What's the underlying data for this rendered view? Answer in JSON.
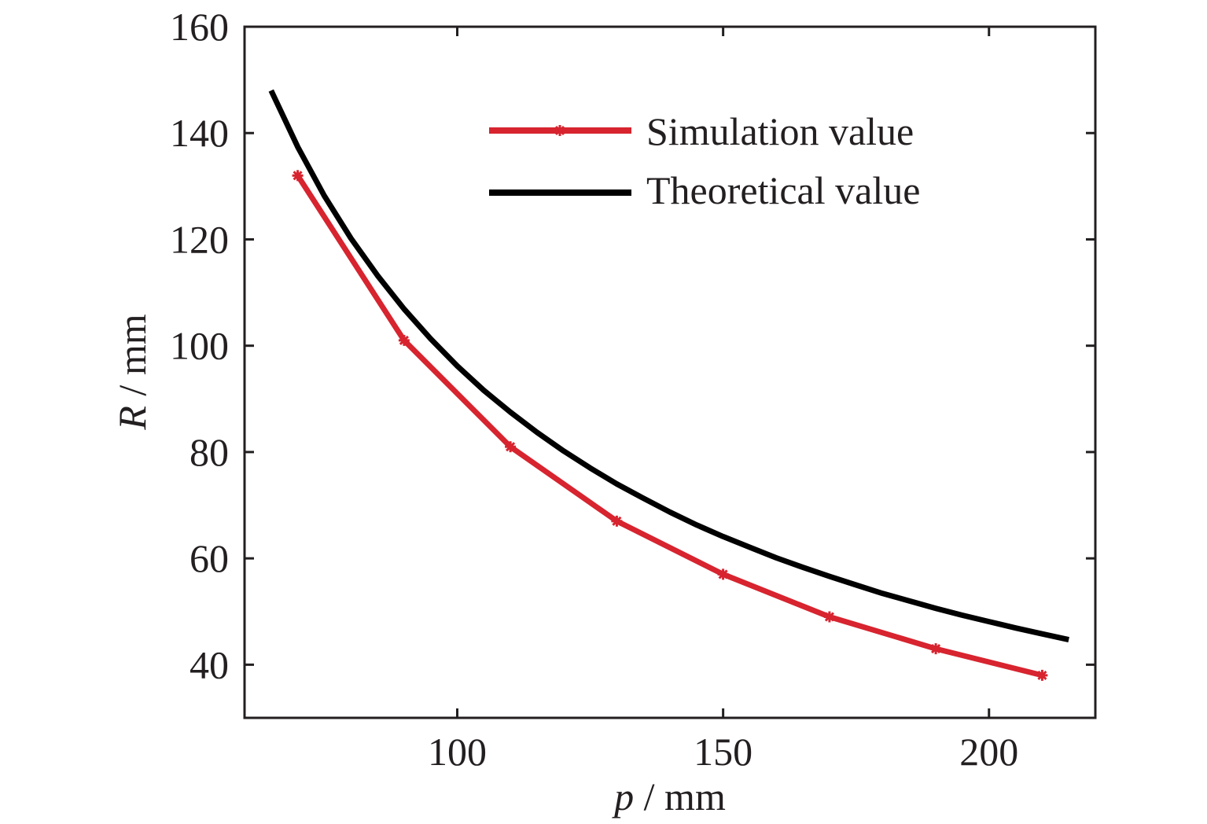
{
  "chart_data": {
    "type": "line",
    "xlabel": {
      "var": "p",
      "unit": " / mm"
    },
    "ylabel": {
      "var": "R",
      "unit": " / mm"
    },
    "xlim": [
      60,
      220
    ],
    "ylim": [
      30,
      160
    ],
    "xticks": [
      100,
      150,
      200
    ],
    "yticks": [
      40,
      60,
      80,
      100,
      120,
      140,
      160
    ],
    "grid": false,
    "legend_position": "top-right",
    "series": [
      {
        "name": "Simulation value",
        "color": "#d7242f",
        "marker": "asterisk",
        "x": [
          70,
          90,
          110,
          130,
          150,
          170,
          190,
          210
        ],
        "y": [
          132,
          101,
          81,
          67,
          57,
          49,
          43,
          38
        ]
      },
      {
        "name": "Theoretical value",
        "color": "#000000",
        "marker": "none",
        "x": [
          65,
          70,
          75,
          80,
          85,
          90,
          95,
          100,
          105,
          110,
          115,
          120,
          125,
          130,
          135,
          140,
          145,
          150,
          155,
          160,
          165,
          170,
          175,
          180,
          185,
          190,
          195,
          200,
          205,
          210,
          215
        ],
        "y": [
          148.0,
          137.4,
          128.2,
          120.2,
          113.2,
          106.9,
          101.3,
          96.2,
          91.6,
          87.5,
          83.7,
          80.2,
          77.0,
          74.0,
          71.3,
          68.7,
          66.3,
          64.1,
          62.1,
          60.1,
          58.3,
          56.6,
          55.0,
          53.4,
          52.0,
          50.6,
          49.3,
          48.1,
          46.9,
          45.8,
          44.7
        ]
      }
    ]
  }
}
